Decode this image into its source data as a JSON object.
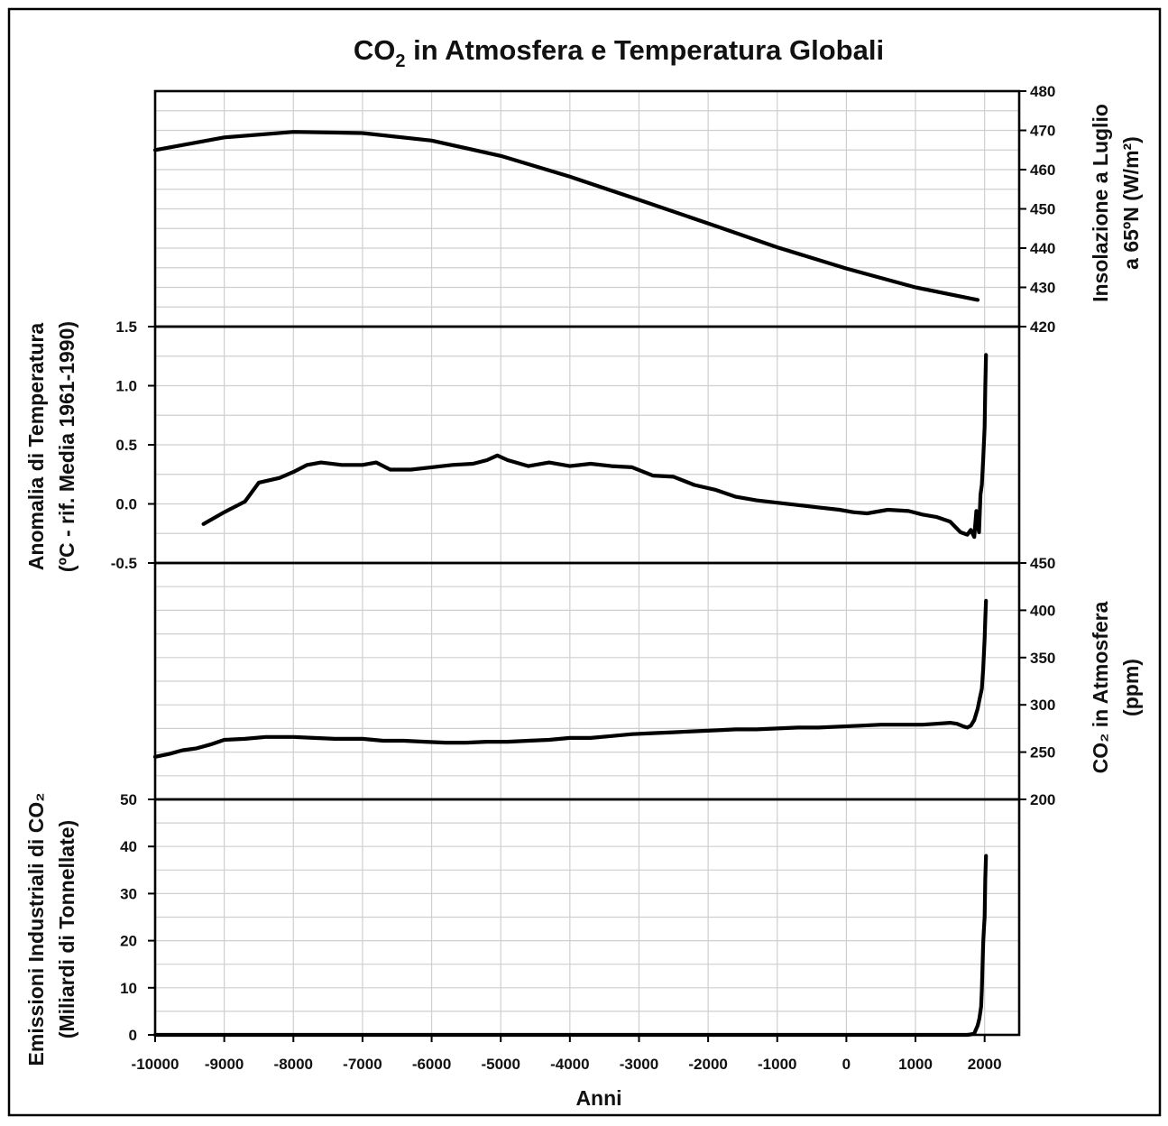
{
  "chart_data": {
    "type": "line",
    "title": "CO₂ in Atmosfera e Temperatura Globali",
    "title_parts": {
      "pre": "CO",
      "sub": "2",
      "post": " in Atmosfera e Temperatura Globali"
    },
    "xlabel": "Anni",
    "xlim": [
      -10000,
      2500
    ],
    "x_ticks": [
      -10000,
      -9000,
      -8000,
      -7000,
      -6000,
      -5000,
      -4000,
      -3000,
      -2000,
      -1000,
      0,
      1000,
      2000
    ],
    "grid": true,
    "panels": [
      {
        "id": "insolation",
        "axis_side": "right",
        "ylabel_lines": [
          "Insolazione a Luglio",
          "a 65ºN (W/m²)"
        ],
        "ylim": [
          420,
          480
        ],
        "y_ticks": [
          420,
          430,
          440,
          450,
          460,
          470,
          480
        ],
        "series": [
          {
            "x": [
              -10000,
              -9000,
              -8000,
              -7000,
              -6000,
              -5000,
              -4000,
              -3000,
              -2000,
              -1000,
              0,
              1000,
              1900
            ],
            "y": [
              465,
              468.2,
              469.6,
              469.3,
              467.4,
              463.5,
              458.2,
              452.3,
              446.3,
              440.2,
              434.8,
              430,
              426.8
            ]
          }
        ]
      },
      {
        "id": "temperature",
        "axis_side": "left",
        "ylabel_lines": [
          "Anomalia di Temperatura",
          "(ºC - rif. Media 1961-1990)"
        ],
        "ylim": [
          -0.5,
          1.5
        ],
        "y_ticks": [
          -0.5,
          0.0,
          0.5,
          1.0,
          1.5
        ],
        "y_tick_labels": [
          "-0.5",
          "0.0",
          "0.5",
          "1.0",
          "1.5"
        ],
        "series": [
          {
            "x": [
              -9300,
              -9000,
              -8700,
              -8500,
              -8200,
              -8000,
              -7800,
              -7600,
              -7300,
              -7000,
              -6800,
              -6600,
              -6300,
              -6000,
              -5700,
              -5400,
              -5200,
              -5050,
              -4900,
              -4600,
              -4300,
              -4000,
              -3700,
              -3400,
              -3100,
              -2800,
              -2500,
              -2200,
              -1900,
              -1600,
              -1300,
              -1000,
              -700,
              -400,
              -100,
              100,
              300,
              600,
              900,
              1100,
              1300,
              1500,
              1650,
              1750,
              1800,
              1850,
              1880,
              1900,
              1920,
              1940,
              1960,
              1980,
              2000,
              2010,
              2020
            ],
            "y": [
              -0.17,
              -0.07,
              0.02,
              0.18,
              0.22,
              0.27,
              0.33,
              0.35,
              0.33,
              0.33,
              0.35,
              0.29,
              0.29,
              0.31,
              0.33,
              0.34,
              0.37,
              0.41,
              0.37,
              0.32,
              0.35,
              0.32,
              0.34,
              0.32,
              0.31,
              0.24,
              0.23,
              0.16,
              0.12,
              0.06,
              0.03,
              0.01,
              -0.01,
              -0.03,
              -0.05,
              -0.07,
              -0.08,
              -0.05,
              -0.06,
              -0.09,
              -0.11,
              -0.15,
              -0.24,
              -0.26,
              -0.22,
              -0.28,
              -0.06,
              -0.18,
              -0.24,
              0.08,
              0.16,
              0.38,
              0.65,
              0.98,
              1.26
            ]
          }
        ]
      },
      {
        "id": "co2",
        "axis_side": "right",
        "ylabel_lines": [
          "CO₂ in Atmosfera",
          "(ppm)"
        ],
        "ylim": [
          200,
          450
        ],
        "y_ticks": [
          200,
          250,
          300,
          350,
          400,
          450
        ],
        "series": [
          {
            "x": [
              -10000,
              -9800,
              -9600,
              -9400,
              -9200,
              -9000,
              -8700,
              -8400,
              -8000,
              -7700,
              -7400,
              -7000,
              -6700,
              -6400,
              -6100,
              -5800,
              -5500,
              -5200,
              -4900,
              -4600,
              -4300,
              -4000,
              -3700,
              -3400,
              -3100,
              -2800,
              -2500,
              -2200,
              -1900,
              -1600,
              -1300,
              -1000,
              -700,
              -400,
              -100,
              200,
              500,
              800,
              1100,
              1300,
              1500,
              1600,
              1700,
              1750,
              1800,
              1850,
              1900,
              1930,
              1960,
              1980,
              2000,
              2010,
              2020
            ],
            "y": [
              245,
              248,
              252,
              254,
              258,
              263,
              264,
              266,
              266,
              265,
              264,
              264,
              262,
              262,
              261,
              260,
              260,
              261,
              261,
              262,
              263,
              265,
              265,
              267,
              269,
              270,
              271,
              272,
              273,
              274,
              274,
              275,
              276,
              276,
              277,
              278,
              279,
              279,
              279,
              280,
              281,
              280,
              277,
              276,
              278,
              284,
              296,
              307,
              317,
              338,
              370,
              390,
              410
            ]
          }
        ]
      },
      {
        "id": "emissions",
        "axis_side": "left",
        "ylabel_lines": [
          "Emissioni Industriali di CO₂",
          "(Miliardi di Tonnellate)"
        ],
        "ylim": [
          0,
          50
        ],
        "y_ticks": [
          0,
          10,
          20,
          30,
          40,
          50
        ],
        "series": [
          {
            "x": [
              -10000,
              1750,
              1800,
              1850,
              1900,
              1925,
              1950,
              1960,
              1970,
              1980,
              1990,
              2000,
              2010,
              2020
            ],
            "y": [
              0,
              0,
              0.1,
              0.3,
              2,
              3.5,
              6,
              9.5,
              15,
              19.5,
              22.5,
              25,
              33,
              38
            ]
          }
        ]
      }
    ]
  }
}
